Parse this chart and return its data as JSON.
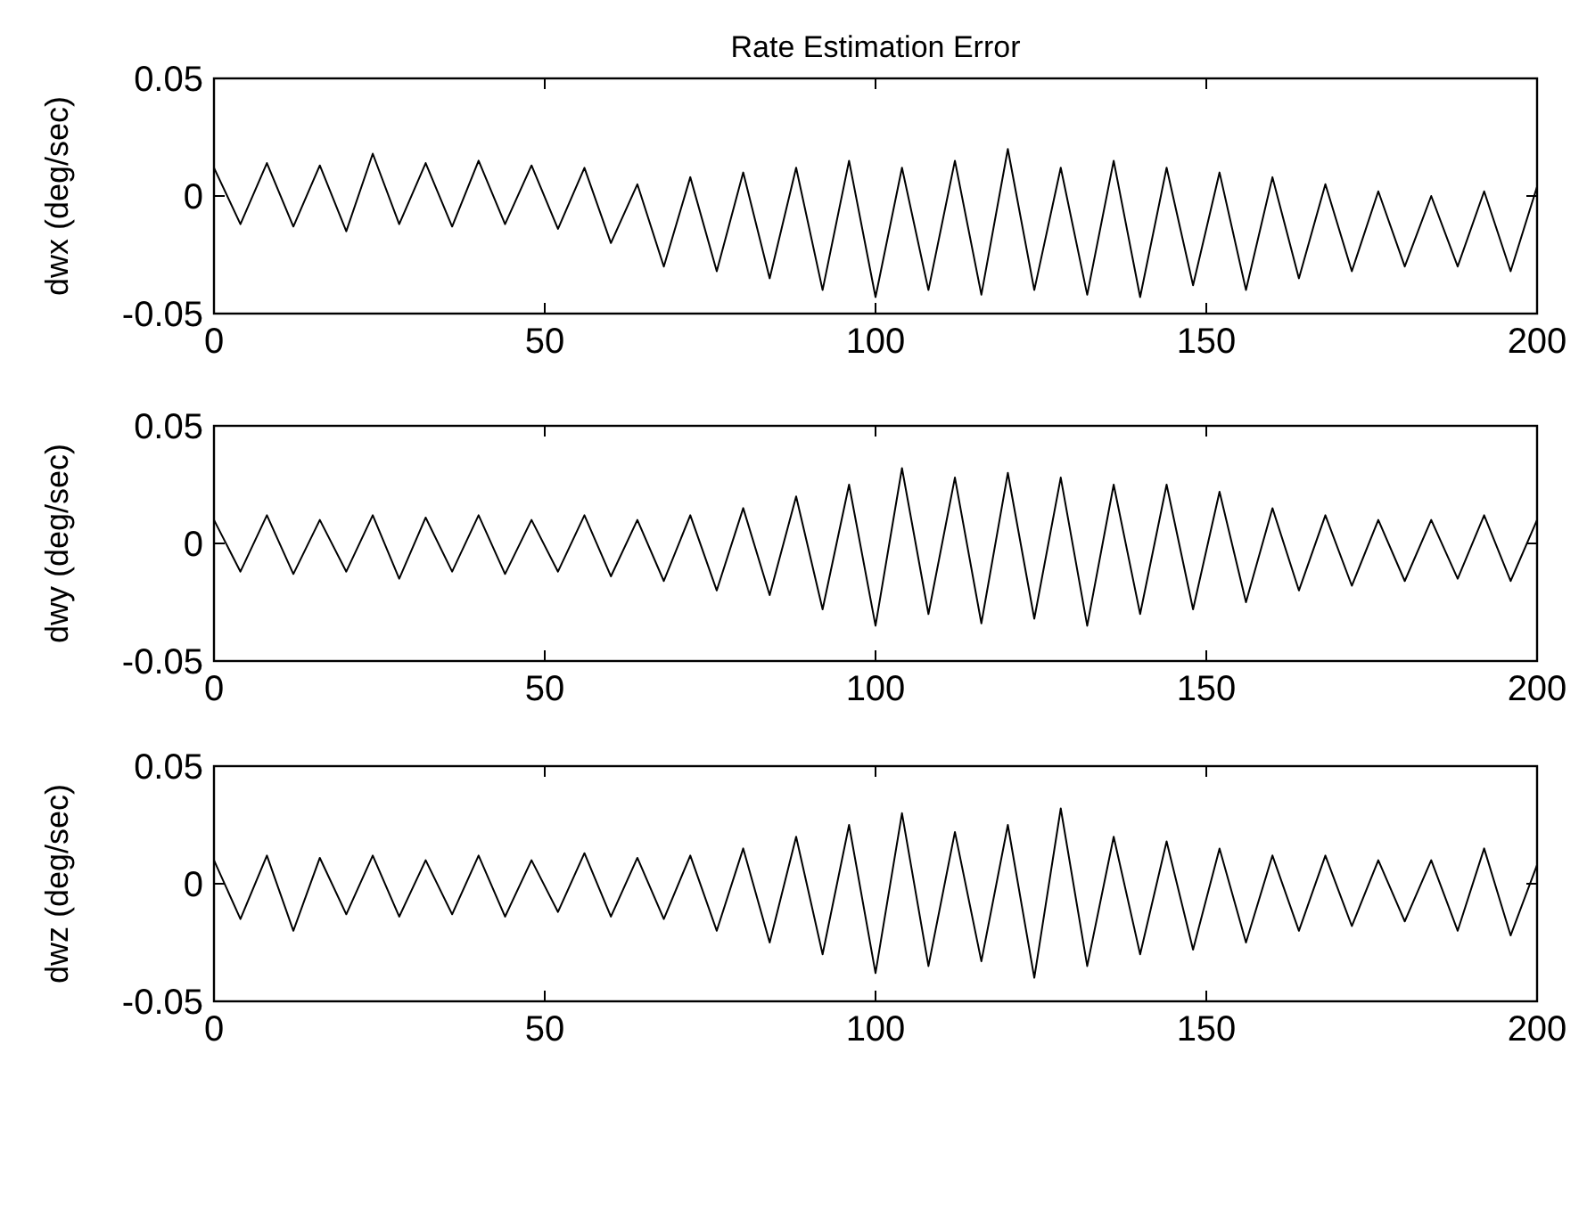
{
  "chart_data": [
    {
      "type": "line",
      "title": "Rate Estimation Error",
      "ylabel": "dwx (deg/sec)",
      "xlim": [
        0,
        200
      ],
      "xticks": [
        0,
        50,
        100,
        150,
        200
      ],
      "ylim": [
        -0.05,
        0.05
      ],
      "yticks": [
        -0.05,
        0,
        0.05
      ],
      "grid": false,
      "x": [
        0,
        4,
        8,
        12,
        16,
        20,
        24,
        28,
        32,
        36,
        40,
        44,
        48,
        52,
        56,
        60,
        64,
        68,
        72,
        76,
        80,
        84,
        88,
        92,
        96,
        100,
        104,
        108,
        112,
        116,
        120,
        124,
        128,
        132,
        136,
        140,
        144,
        148,
        152,
        156,
        160,
        164,
        168,
        172,
        176,
        180,
        184,
        188,
        192,
        196,
        200
      ],
      "series": [
        {
          "color": "#000000",
          "values": [
            0.012,
            -0.012,
            0.014,
            -0.013,
            0.013,
            -0.015,
            0.018,
            -0.012,
            0.014,
            -0.013,
            0.015,
            -0.012,
            0.013,
            -0.014,
            0.012,
            -0.02,
            0.005,
            -0.03,
            0.008,
            -0.032,
            0.01,
            -0.035,
            0.012,
            -0.04,
            0.015,
            -0.043,
            0.012,
            -0.04,
            0.015,
            -0.042,
            0.02,
            -0.04,
            0.012,
            -0.042,
            0.015,
            -0.043,
            0.012,
            -0.038,
            0.01,
            -0.04,
            0.008,
            -0.035,
            0.005,
            -0.032,
            0.002,
            -0.03,
            0.0,
            -0.03,
            0.002,
            -0.032,
            0.004
          ]
        }
      ]
    },
    {
      "type": "line",
      "ylabel": "dwy (deg/sec)",
      "xlim": [
        0,
        200
      ],
      "xticks": [
        0,
        50,
        100,
        150,
        200
      ],
      "ylim": [
        -0.05,
        0.05
      ],
      "yticks": [
        -0.05,
        0,
        0.05
      ],
      "grid": false,
      "x": [
        0,
        4,
        8,
        12,
        16,
        20,
        24,
        28,
        32,
        36,
        40,
        44,
        48,
        52,
        56,
        60,
        64,
        68,
        72,
        76,
        80,
        84,
        88,
        92,
        96,
        100,
        104,
        108,
        112,
        116,
        120,
        124,
        128,
        132,
        136,
        140,
        144,
        148,
        152,
        156,
        160,
        164,
        168,
        172,
        176,
        180,
        184,
        188,
        192,
        196,
        200
      ],
      "series": [
        {
          "color": "#000000",
          "values": [
            0.01,
            -0.012,
            0.012,
            -0.013,
            0.01,
            -0.012,
            0.012,
            -0.015,
            0.011,
            -0.012,
            0.012,
            -0.013,
            0.01,
            -0.012,
            0.012,
            -0.014,
            0.01,
            -0.016,
            0.012,
            -0.02,
            0.015,
            -0.022,
            0.02,
            -0.028,
            0.025,
            -0.035,
            0.032,
            -0.03,
            0.028,
            -0.034,
            0.03,
            -0.032,
            0.028,
            -0.035,
            0.025,
            -0.03,
            0.025,
            -0.028,
            0.022,
            -0.025,
            0.015,
            -0.02,
            0.012,
            -0.018,
            0.01,
            -0.016,
            0.01,
            -0.015,
            0.012,
            -0.016,
            0.01
          ]
        }
      ]
    },
    {
      "type": "line",
      "ylabel": "dwz (deg/sec)",
      "xlim": [
        0,
        200
      ],
      "xticks": [
        0,
        50,
        100,
        150,
        200
      ],
      "ylim": [
        -0.05,
        0.05
      ],
      "yticks": [
        -0.05,
        0,
        0.05
      ],
      "grid": false,
      "x": [
        0,
        4,
        8,
        12,
        16,
        20,
        24,
        28,
        32,
        36,
        40,
        44,
        48,
        52,
        56,
        60,
        64,
        68,
        72,
        76,
        80,
        84,
        88,
        92,
        96,
        100,
        104,
        108,
        112,
        116,
        120,
        124,
        128,
        132,
        136,
        140,
        144,
        148,
        152,
        156,
        160,
        164,
        168,
        172,
        176,
        180,
        184,
        188,
        192,
        196,
        200
      ],
      "series": [
        {
          "color": "#000000",
          "values": [
            0.01,
            -0.015,
            0.012,
            -0.02,
            0.011,
            -0.013,
            0.012,
            -0.014,
            0.01,
            -0.013,
            0.012,
            -0.014,
            0.01,
            -0.012,
            0.013,
            -0.014,
            0.011,
            -0.015,
            0.012,
            -0.02,
            0.015,
            -0.025,
            0.02,
            -0.03,
            0.025,
            -0.038,
            0.03,
            -0.035,
            0.022,
            -0.033,
            0.025,
            -0.04,
            0.032,
            -0.035,
            0.02,
            -0.03,
            0.018,
            -0.028,
            0.015,
            -0.025,
            0.012,
            -0.02,
            0.012,
            -0.018,
            0.01,
            -0.016,
            0.01,
            -0.02,
            0.015,
            -0.022,
            0.008
          ]
        }
      ]
    }
  ]
}
